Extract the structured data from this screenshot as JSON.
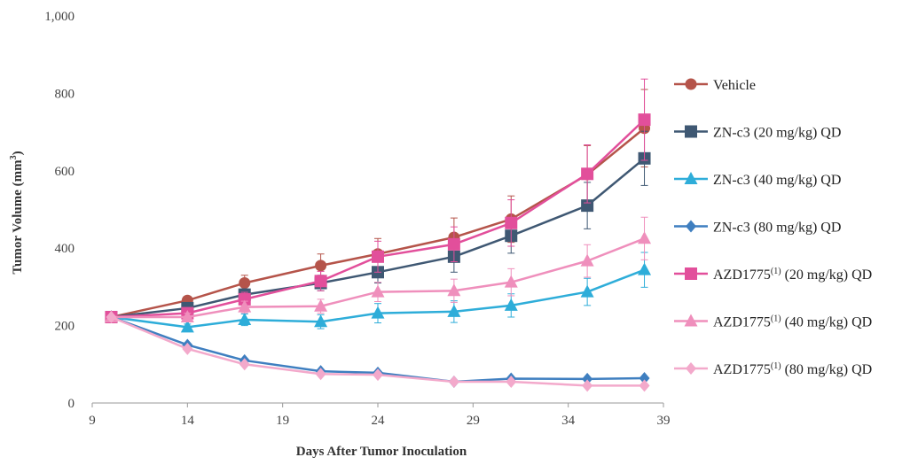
{
  "chart_data": {
    "type": "line",
    "title": "",
    "xlabel": "Days After Tumor Inoculation",
    "ylabel": {
      "main": "Tumor Volume (mm",
      "sup": "3",
      "tail": ")"
    },
    "xlim": [
      9,
      39
    ],
    "ylim": [
      0,
      1000
    ],
    "x_ticks": [
      9,
      14,
      19,
      24,
      29,
      34,
      39
    ],
    "y_ticks": [
      0,
      200,
      400,
      600,
      800,
      1000
    ],
    "x_tick_labels": [
      "9",
      "14",
      "19",
      "24",
      "29",
      "34",
      "39"
    ],
    "y_tick_labels": [
      "0",
      "200",
      "400",
      "600",
      "800",
      "1,000"
    ],
    "grid": false,
    "legend_position": "right",
    "x": [
      10,
      14,
      17,
      21,
      24,
      28,
      31,
      35,
      38
    ],
    "series": [
      {
        "id": "vehicle",
        "name": "Vehicle",
        "sup": "",
        "name_tail": "",
        "color": "#B5544A",
        "marker": "circle",
        "values": [
          222,
          265,
          310,
          355,
          385,
          428,
          475,
          590,
          710
        ],
        "errors": [
          0,
          10,
          20,
          30,
          40,
          50,
          60,
          75,
          100
        ]
      },
      {
        "id": "znc3-20",
        "name": "ZN-c3 (20 mg/kg) QD",
        "sup": "",
        "name_tail": "",
        "color": "#3F5873",
        "marker": "square",
        "values": [
          222,
          245,
          280,
          310,
          338,
          378,
          432,
          510,
          632
        ],
        "errors": [
          0,
          8,
          15,
          20,
          28,
          40,
          45,
          60,
          70
        ]
      },
      {
        "id": "znc3-40",
        "name": "ZN-c3 (40 mg/kg) QD",
        "sup": "",
        "name_tail": "",
        "color": "#2EADD9",
        "marker": "triangle",
        "values": [
          222,
          196,
          215,
          210,
          232,
          236,
          252,
          287,
          344
        ],
        "errors": [
          0,
          8,
          15,
          18,
          25,
          28,
          30,
          35,
          45
        ]
      },
      {
        "id": "znc3-80",
        "name": "ZN-c3 (80 mg/kg) QD",
        "sup": "",
        "name_tail": "",
        "color": "#3F7FC0",
        "marker": "diamond",
        "values": [
          222,
          150,
          110,
          82,
          78,
          55,
          63,
          62,
          64
        ],
        "errors": [
          0,
          0,
          0,
          0,
          0,
          0,
          0,
          0,
          0
        ]
      },
      {
        "id": "azd-20",
        "name": "AZD1775",
        "sup": "(1)",
        "name_tail": " (20 mg/kg) QD",
        "color": "#E24F9B",
        "marker": "square",
        "values": [
          222,
          232,
          268,
          315,
          378,
          410,
          465,
          592,
          732
        ],
        "errors": [
          0,
          10,
          18,
          25,
          40,
          45,
          60,
          75,
          105
        ]
      },
      {
        "id": "azd-40",
        "name": "AZD1775",
        "sup": "(1)",
        "name_tail": " (40 mg/kg) QD",
        "color": "#EF8FBC",
        "marker": "triangle",
        "values": [
          222,
          222,
          248,
          250,
          287,
          290,
          312,
          367,
          425
        ],
        "errors": [
          0,
          10,
          15,
          18,
          25,
          30,
          35,
          42,
          55
        ]
      },
      {
        "id": "azd-80",
        "name": "AZD1775",
        "sup": "(1)",
        "name_tail": " (80 mg/kg) QD",
        "color": "#F3A9CB",
        "marker": "diamond",
        "values": [
          222,
          140,
          100,
          75,
          73,
          55,
          55,
          45,
          45
        ],
        "errors": [
          0,
          0,
          0,
          0,
          0,
          0,
          0,
          0,
          0
        ]
      }
    ]
  }
}
